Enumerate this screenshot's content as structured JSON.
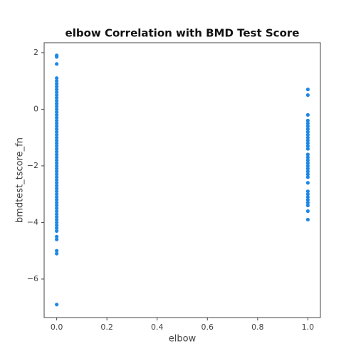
{
  "chart_data": {
    "type": "scatter",
    "title": "elbow Correlation with BMD Test Score",
    "x_label": "elbow",
    "y_label": "bmdtest_tscore_fn",
    "color": "#1e88e5",
    "grid": false,
    "xlim": [
      -0.05,
      1.05
    ],
    "ylim": [
      -7.36,
      2.35
    ],
    "xticks": [
      {
        "value": 0,
        "label": "0.0"
      },
      {
        "value": 0.2,
        "label": "0.2"
      },
      {
        "value": 0.4,
        "label": "0.4"
      },
      {
        "value": 0.6,
        "label": "0.6"
      },
      {
        "value": 0.8,
        "label": "0.8"
      },
      {
        "value": 1,
        "label": "1.0"
      }
    ],
    "yticks": [
      {
        "value": -6,
        "label": "−6"
      },
      {
        "value": -4,
        "label": "−4"
      },
      {
        "value": -2,
        "label": "−2"
      },
      0,
      2
    ],
    "x": [
      0,
      0,
      0,
      0,
      0,
      0,
      0,
      0,
      0,
      0,
      0,
      0,
      0,
      0,
      0,
      0,
      0,
      0,
      0,
      0,
      0,
      0,
      0,
      0,
      0,
      0,
      0,
      0,
      0,
      0,
      0,
      0,
      0,
      0,
      0,
      0,
      0,
      0,
      0,
      0,
      0,
      0,
      0,
      0,
      0,
      0,
      0,
      0,
      0,
      0,
      0,
      0,
      0,
      0,
      0,
      0,
      0,
      0,
      0,
      0,
      0,
      0,
      0,
      1,
      1,
      1,
      1,
      1,
      1,
      1,
      1,
      1,
      1,
      1,
      1,
      1,
      1,
      1,
      1,
      1,
      1,
      1,
      1,
      1,
      1,
      1,
      1,
      1,
      1,
      1,
      1,
      1,
      1,
      1,
      1
    ],
    "y": [
      1.9,
      1.85,
      1.6,
      1.1,
      1.0,
      0.9,
      0.8,
      0.7,
      0.6,
      0.5,
      0.4,
      0.3,
      0.2,
      0.1,
      0,
      -0.1,
      -0.2,
      -0.3,
      -0.4,
      -0.5,
      -0.6,
      -0.7,
      -0.8,
      -0.9,
      -1.0,
      -1.1,
      -1.2,
      -1.3,
      -1.4,
      -1.5,
      -1.6,
      -1.7,
      -1.8,
      -1.9,
      -2.0,
      -2.1,
      -2.2,
      -2.3,
      -2.4,
      -2.5,
      -2.6,
      -2.7,
      -2.8,
      -2.9,
      -3.0,
      -3.1,
      -3.2,
      -3.3,
      -3.4,
      -3.5,
      -3.6,
      -3.7,
      -3.8,
      -3.9,
      -4.0,
      -4.1,
      -4.2,
      -4.3,
      -4.5,
      -4.6,
      -5.0,
      -5.1,
      -6.9,
      0.7,
      0.5,
      -0.2,
      -0.4,
      -0.5,
      -0.6,
      -0.7,
      -0.8,
      -0.9,
      -1.0,
      -1.1,
      -1.2,
      -1.3,
      -1.4,
      -1.6,
      -1.7,
      -1.8,
      -1.9,
      -2.0,
      -2.1,
      -2.2,
      -2.3,
      -2.4,
      -2.6,
      -2.9,
      -3.0,
      -3.1,
      -3.2,
      -3.3,
      -3.4,
      -3.6,
      -3.9
    ]
  }
}
